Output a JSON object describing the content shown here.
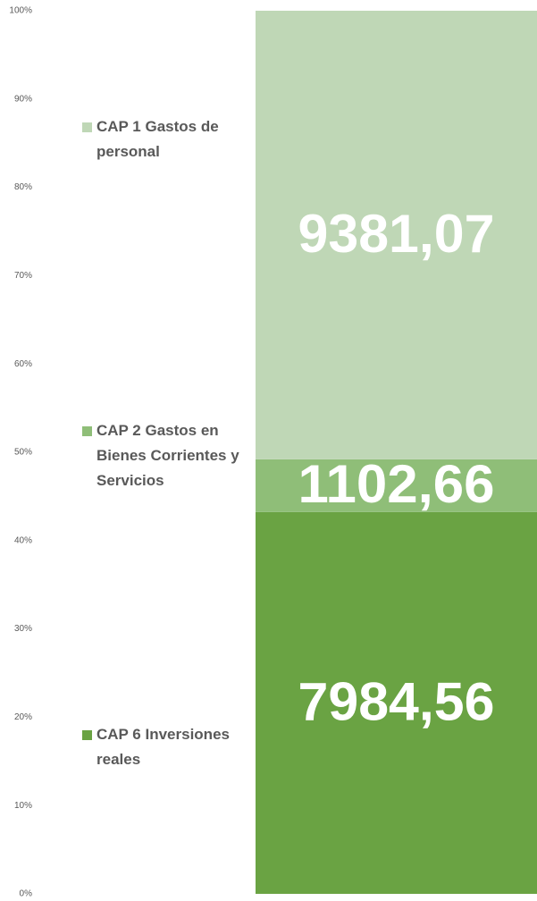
{
  "chart_data": {
    "type": "stacked_percent_bar",
    "categories": [
      null
    ],
    "series": [
      {
        "name": "CAP 6 Inversiones reales",
        "color": "#6aa343",
        "values": [
          7984.56
        ],
        "value_labels": [
          "7984,56"
        ]
      },
      {
        "name": "CAP 2 Gastos en Bienes Corrientes y Servicios",
        "color": "#8fbe78",
        "values": [
          1102.66
        ],
        "value_labels": [
          "1102,66"
        ]
      },
      {
        "name": "CAP 1 Gastos de personal",
        "color": "#bfd7b6",
        "values": [
          9381.07
        ],
        "value_labels": [
          "9381,07"
        ]
      }
    ],
    "ylim": [
      0,
      100
    ],
    "yticks": [
      {
        "value": 0,
        "label": "0%"
      },
      {
        "value": 10,
        "label": "10%"
      },
      {
        "value": 20,
        "label": "20%"
      },
      {
        "value": 30,
        "label": "30%"
      },
      {
        "value": 40,
        "label": "40%"
      },
      {
        "value": 50,
        "label": "50%"
      },
      {
        "value": 60,
        "label": "60%"
      },
      {
        "value": 70,
        "label": "70%"
      },
      {
        "value": 80,
        "label": "80%"
      },
      {
        "value": 90,
        "label": "90%"
      },
      {
        "value": 100,
        "label": "100%"
      }
    ],
    "legend": "left"
  }
}
